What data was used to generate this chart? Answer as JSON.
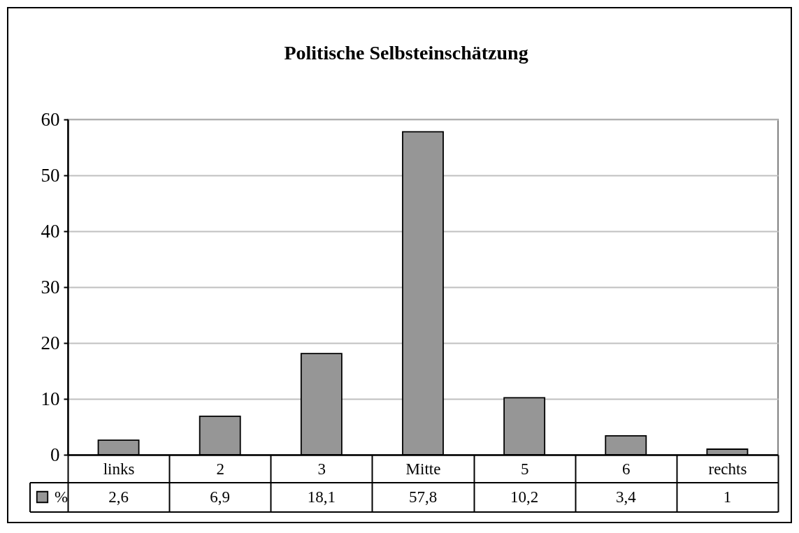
{
  "chart_data": {
    "type": "bar",
    "title": "Politische Selbsteinschätzung",
    "categories": [
      "links",
      "2",
      "3",
      "Mitte",
      "5",
      "6",
      "rechts"
    ],
    "series": [
      {
        "name": "%",
        "color": "#969696",
        "values": [
          2.6,
          6.9,
          18.1,
          57.8,
          10.2,
          3.4,
          1
        ],
        "value_labels": [
          "2,6",
          "6,9",
          "18,1",
          "57,8",
          "10,2",
          "3,4",
          "1"
        ]
      }
    ],
    "ylim": [
      0,
      60
    ],
    "yticks": [
      0,
      10,
      20,
      30,
      40,
      50,
      60
    ],
    "grid": "y",
    "legend": "bottom left"
  }
}
